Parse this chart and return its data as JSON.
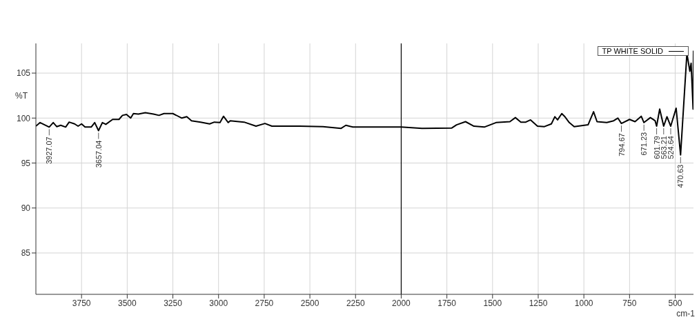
{
  "chart_data": {
    "type": "line",
    "ylabel": "%T",
    "xlabel": "cm-1",
    "xlim": [
      4000,
      400
    ],
    "xticks": [
      3750,
      3500,
      3250,
      3000,
      2750,
      2500,
      2250,
      2000,
      1750,
      1500,
      1250,
      1000,
      750,
      500
    ],
    "ylim": [
      80.4,
      108.3
    ],
    "yticks": [
      85,
      90,
      95,
      100,
      105
    ],
    "grid": true,
    "legend": "top right",
    "marker": "none",
    "line_style": "solid",
    "ref_lines": [
      {
        "axis": "x",
        "value": 2000,
        "label": null,
        "color": "#000000"
      }
    ],
    "series": [
      {
        "name": "TP WHITE SOLID",
        "color": "#000000",
        "x": [
          4000,
          3977,
          3927.07,
          3905,
          3886,
          3864,
          3837,
          3818,
          3788,
          3769,
          3750,
          3731,
          3697,
          3678,
          3657.04,
          3636,
          3617,
          3580,
          3545,
          3526,
          3504,
          3481,
          3466,
          3439,
          3401,
          3356,
          3326,
          3299,
          3250,
          3201,
          3174,
          3148,
          3098,
          3049,
          3023,
          2992,
          2973,
          2947,
          2936,
          2860,
          2795,
          2746,
          2708,
          2557,
          2428,
          2330,
          2303,
          2265,
          2000,
          1886,
          1723,
          1697,
          1648,
          1602,
          1545,
          1481,
          1405,
          1375,
          1345,
          1318,
          1292,
          1254,
          1216,
          1178,
          1159,
          1144,
          1121,
          1106,
          1080,
          1053,
          977,
          947,
          928,
          875,
          837,
          814,
          794.67,
          750,
          720,
          686,
          671.23,
          636,
          610,
          601.79,
          585,
          563.21,
          545,
          524.64,
          495,
          470.63,
          436,
          420,
          413,
          402,
          400
        ],
        "values": [
          99.1,
          99.5,
          99.0,
          99.5,
          99.05,
          99.2,
          99.0,
          99.55,
          99.35,
          99.1,
          99.35,
          99.0,
          99.0,
          99.5,
          98.6,
          99.5,
          99.3,
          99.85,
          99.85,
          100.3,
          100.4,
          100.0,
          100.5,
          100.45,
          100.6,
          100.45,
          100.3,
          100.5,
          100.5,
          100.0,
          100.15,
          99.7,
          99.55,
          99.35,
          99.55,
          99.5,
          100.2,
          99.5,
          99.7,
          99.55,
          99.1,
          99.4,
          99.1,
          99.1,
          99.05,
          98.85,
          99.2,
          99.0,
          99.0,
          98.85,
          98.9,
          99.25,
          99.6,
          99.1,
          99.0,
          99.5,
          99.6,
          100.05,
          99.55,
          99.55,
          99.8,
          99.1,
          99.05,
          99.35,
          100.15,
          99.8,
          100.5,
          100.2,
          99.5,
          99.05,
          99.25,
          100.7,
          99.6,
          99.5,
          99.7,
          100.0,
          99.4,
          99.85,
          99.6,
          100.2,
          99.5,
          100.05,
          99.7,
          99.1,
          101.0,
          99.1,
          100.15,
          99.1,
          101.1,
          95.9,
          107.2,
          105.2,
          106.1,
          101.0,
          107.5
        ]
      }
    ],
    "annotations": [
      {
        "text": "3927.07",
        "x": 3927.07,
        "y": 99.0
      },
      {
        "text": "3657.04",
        "x": 3657.04,
        "y": 98.6
      },
      {
        "text": "794.67",
        "x": 794.67,
        "y": 99.4
      },
      {
        "text": "671.23",
        "x": 671.23,
        "y": 99.5
      },
      {
        "text": "601.79",
        "x": 601.79,
        "y": 99.1
      },
      {
        "text": "563.21",
        "x": 563.21,
        "y": 99.1
      },
      {
        "text": "524.64",
        "x": 524.64,
        "y": 99.1
      },
      {
        "text": "470.63",
        "x": 470.63,
        "y": 95.9
      }
    ]
  }
}
